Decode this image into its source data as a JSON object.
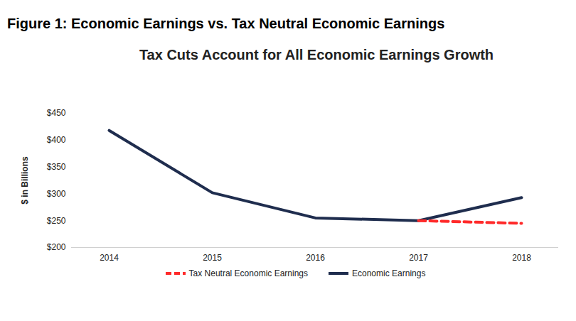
{
  "figure_title": "Figure 1: Economic Earnings vs. Tax Neutral Economic Earnings",
  "chart_data": {
    "type": "line",
    "title": "Tax Cuts Account for All Economic Earnings Growth",
    "y_label": "$ in Billions",
    "categories": [
      "2014",
      "2015",
      "2016",
      "2017",
      "2018"
    ],
    "series": [
      {
        "name": "Tax Neutral Economic Earnings",
        "color": "#ff2a2a",
        "line_style": "dashed",
        "values": [
          null,
          null,
          null,
          250,
          245
        ]
      },
      {
        "name": "Economic Earnings",
        "color": "#1f2d4e",
        "line_style": "solid",
        "values": [
          418,
          302,
          255,
          250,
          293
        ]
      }
    ],
    "ylim": [
      200,
      450
    ],
    "yticks": [
      {
        "value": 200,
        "label": "$200"
      },
      {
        "value": 250,
        "label": "$250"
      },
      {
        "value": 300,
        "label": "$300"
      },
      {
        "value": 350,
        "label": "$350"
      },
      {
        "value": 400,
        "label": "$400"
      },
      {
        "value": 450,
        "label": "$450"
      }
    ],
    "grid": false,
    "legend": "bottom"
  }
}
